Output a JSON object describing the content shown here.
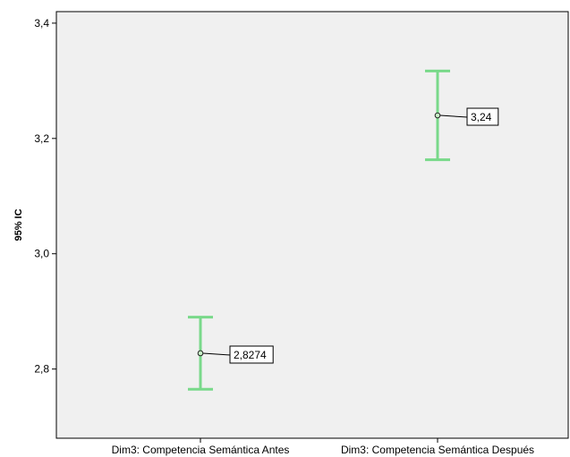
{
  "chart_data": {
    "type": "errorbar",
    "ylabel": "95% IC",
    "xlabel": "",
    "ylim": [
      2.68,
      3.42
    ],
    "yticks": [
      2.8,
      3.0,
      3.2,
      3.4
    ],
    "ytick_labels": [
      "2,8",
      "3,0",
      "3,2",
      "3,4"
    ],
    "categories": [
      "Dim3: Competencia Semántica Antes",
      "Dim3: Competencia Semántica Después"
    ],
    "points": [
      {
        "category": "Dim3: Competencia Semántica Antes",
        "mean": 2.8274,
        "lower": 2.765,
        "upper": 2.89,
        "label": "2,8274"
      },
      {
        "category": "Dim3: Competencia Semántica Después",
        "mean": 3.24,
        "lower": 3.163,
        "upper": 3.317,
        "label": "3,24"
      }
    ],
    "grid": false,
    "colors": {
      "errorbar": "#79d98a",
      "plot_background": "#f0f0f0",
      "marker_fill": "#c8f0c8",
      "marker_stroke": "#222222"
    }
  }
}
